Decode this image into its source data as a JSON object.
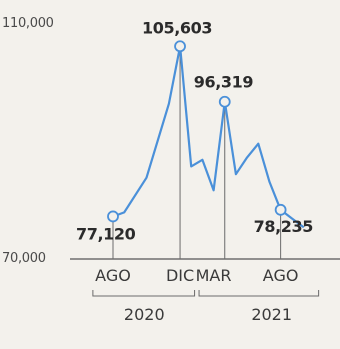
{
  "chart_data": {
    "type": "line",
    "ylim": [
      70000,
      110000
    ],
    "yticks": [
      "110,000",
      "70,000"
    ],
    "x": [
      0,
      0.5,
      1.5,
      2.5,
      3,
      3.5,
      4,
      4.5,
      5,
      5.5,
      6,
      6.5,
      7,
      7.5,
      8,
      8.5
    ],
    "values": [
      77120,
      77800,
      83600,
      96000,
      105603,
      85500,
      86600,
      81500,
      96319,
      84200,
      87000,
      89300,
      82900,
      78235,
      76800,
      75400
    ],
    "line_color": "#4a90d9",
    "marker_color": "#4a90d9",
    "highlights": [
      {
        "index": 0,
        "label": "77,120"
      },
      {
        "index": 4,
        "label": "105,603"
      },
      {
        "index": 8,
        "label": "96,319"
      },
      {
        "index": 13,
        "label": "78,235"
      }
    ],
    "month_labels": [
      {
        "x": 0,
        "label": "AGO"
      },
      {
        "x": 3,
        "label": "DIC"
      },
      {
        "x": 4.5,
        "label": "MAR"
      },
      {
        "x": 7.5,
        "label": "AGO"
      }
    ],
    "year_groups": [
      {
        "label": "2020",
        "from": -0.9,
        "to": 3.65
      },
      {
        "label": "2021",
        "from": 3.85,
        "to": 9.2
      }
    ]
  }
}
